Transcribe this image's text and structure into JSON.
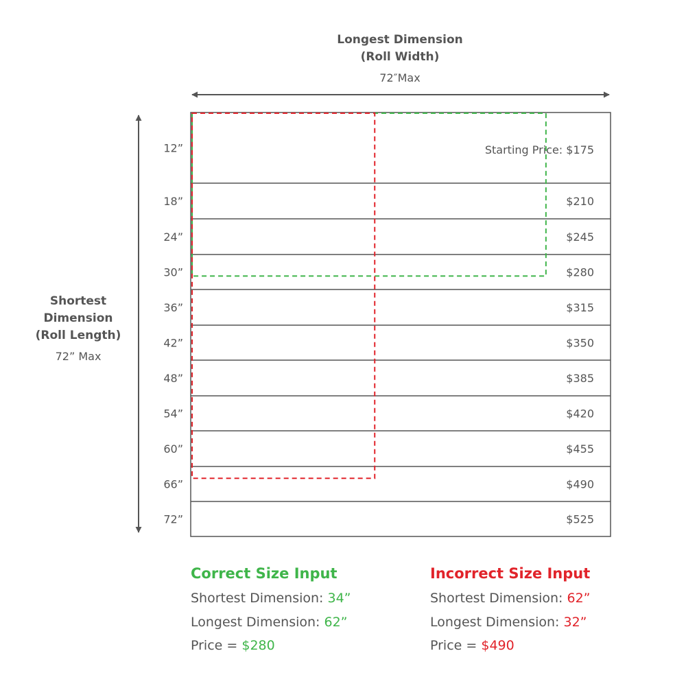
{
  "top_axis": {
    "title_line1": "Longest Dimension",
    "title_line2": "(Roll Width)",
    "max": "72″Max"
  },
  "left_axis": {
    "title_line1": "Shortest",
    "title_line2": "Dimension",
    "title_line3": "(Roll Length)",
    "max": "72” Max"
  },
  "rows": [
    {
      "size": "12”",
      "price": "Starting Price: $175"
    },
    {
      "size": "18”",
      "price": "$210"
    },
    {
      "size": "24”",
      "price": "$245"
    },
    {
      "size": "30”",
      "price": "$280"
    },
    {
      "size": "36”",
      "price": "$315"
    },
    {
      "size": "42”",
      "price": "$350"
    },
    {
      "size": "48”",
      "price": "$385"
    },
    {
      "size": "54”",
      "price": "$420"
    },
    {
      "size": "60”",
      "price": "$455"
    },
    {
      "size": "66”",
      "price": "$490"
    },
    {
      "size": "72”",
      "price": "$525"
    }
  ],
  "correct": {
    "heading": "Correct Size Input",
    "shortest_label": "Shortest Dimension: ",
    "shortest_value": "34”",
    "longest_label": "Longest Dimension: ",
    "longest_value": "62”",
    "price_label": "Price = ",
    "price_value": "$280",
    "color": "#3fb54a",
    "shortest_in": 34,
    "longest_in": 62
  },
  "incorrect": {
    "heading": "Incorrect Size Input",
    "shortest_label": "Shortest Dimension: ",
    "shortest_value": "62”",
    "longest_label": "Longest Dimension: ",
    "longest_value": "32”",
    "price_label": "Price = ",
    "price_value": "$490",
    "color": "#e1232a",
    "shortest_in": 62,
    "longest_in": 32
  },
  "colors": {
    "text": "#555555",
    "grid": "#555555",
    "green": "#3fb54a",
    "red": "#e1232a"
  }
}
